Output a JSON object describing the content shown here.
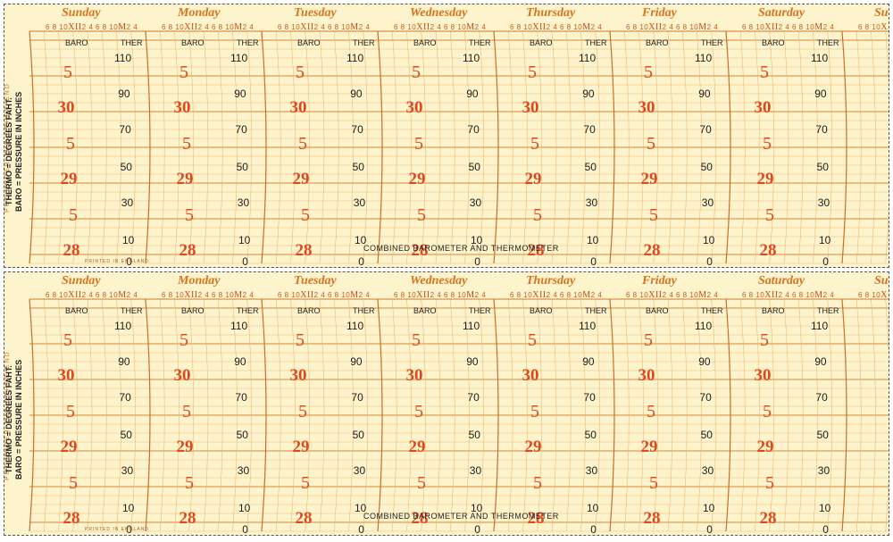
{
  "days": [
    "Sunday",
    "Monday",
    "Tuesday",
    "Wednesday",
    "Thursday",
    "Friday",
    "Saturday",
    "Su"
  ],
  "hours": {
    "small1": "6 8 10",
    "xii": "XII",
    "two": "2",
    "small2": "4 6 8 10",
    "m": "M",
    "two_b": "2",
    "small3": "4"
  },
  "headers": {
    "baro": "BARO",
    "ther": "THER"
  },
  "baro_scale": [
    "5",
    "30",
    "5",
    "29",
    "5",
    "28"
  ],
  "ther_scale": [
    "110",
    "90",
    "70",
    "50",
    "30",
    "10",
    "0"
  ],
  "side_put": "PUT UNDER THE OTHER END",
  "side_desc_1": "THERMO = DEGREES FAHT.",
  "side_desc_2": "BARO = PRESSURE IN INCHES",
  "title": "COMBINED BAROMETER AND THERMOMETER",
  "printed": "PRINTED IN ENGLAND",
  "colors": {
    "paper": "#fdf3cc",
    "grid": "#e6a44a",
    "accent": "#e0481c",
    "text": "#222222"
  }
}
